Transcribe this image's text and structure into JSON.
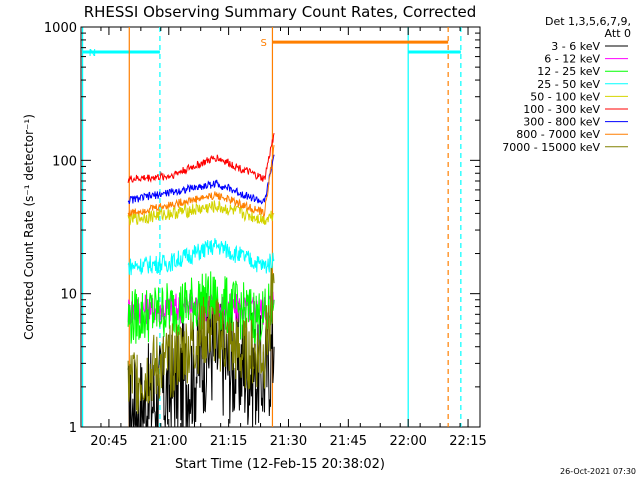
{
  "chart_data": {
    "type": "line",
    "title": "RHESSI Observing Summary Count Rates, Corrected",
    "xlabel": "Start Time (12-Feb-15 20:38:02)",
    "ylabel": "Corrected Count Rate (s⁻¹ detector⁻¹)",
    "yscale": "log",
    "ylim": [
      1,
      1000
    ],
    "xlim": [
      "20:38",
      "22:18"
    ],
    "x_ticks": [
      "20:45",
      "21:00",
      "21:15",
      "21:30",
      "21:45",
      "22:00",
      "22:15"
    ],
    "y_ticks": [
      "1",
      "10",
      "100",
      "1000"
    ],
    "grid": false,
    "legend_position": "right",
    "legend_header": [
      "Det 1,3,5,6,7,9,",
      "Att 0"
    ],
    "timestamp": "26-Oct-2021 07:30",
    "flag_labels": {
      "night": "N",
      "saa": "S"
    },
    "series": [
      {
        "name": "3 - 6 keV",
        "color": "#000000",
        "values": [
          [
            20.83,
            1.2
          ],
          [
            21.1,
            2.5
          ],
          [
            21.17,
            4
          ],
          [
            21.25,
            3
          ],
          [
            21.4,
            2.5
          ],
          [
            21.44,
            4
          ]
        ]
      },
      {
        "name": "6 - 12 keV",
        "color": "#ff00ff",
        "values": [
          [
            20.83,
            7.5
          ],
          [
            21.17,
            8
          ],
          [
            21.4,
            7.5
          ],
          [
            21.44,
            9
          ]
        ]
      },
      {
        "name": "12 - 25 keV",
        "color": "#00ff00",
        "values": [
          [
            20.83,
            6.5
          ],
          [
            21.17,
            9
          ],
          [
            21.4,
            6.5
          ],
          [
            21.44,
            9
          ]
        ]
      },
      {
        "name": "25 - 50 keV",
        "color": "#00ffff",
        "values": [
          [
            20.83,
            16
          ],
          [
            21.0,
            17
          ],
          [
            21.2,
            23
          ],
          [
            21.4,
            16
          ],
          [
            21.44,
            18
          ]
        ]
      },
      {
        "name": "50 - 100 keV",
        "color": "#d4d400",
        "values": [
          [
            20.83,
            36
          ],
          [
            21.2,
            45
          ],
          [
            21.4,
            36
          ],
          [
            21.44,
            40
          ]
        ]
      },
      {
        "name": "100 - 300 keV",
        "color": "#ff0000",
        "values": [
          [
            20.83,
            72
          ],
          [
            21.0,
            76
          ],
          [
            21.2,
            105
          ],
          [
            21.4,
            72
          ],
          [
            21.44,
            160
          ]
        ]
      },
      {
        "name": "300 - 800 keV",
        "color": "#0000ff",
        "values": [
          [
            20.83,
            50
          ],
          [
            21.2,
            67
          ],
          [
            21.4,
            48
          ],
          [
            21.44,
            110
          ]
        ]
      },
      {
        "name": "800 - 7000 keV",
        "color": "#ff7f00",
        "values": [
          [
            20.83,
            40
          ],
          [
            21.2,
            55
          ],
          [
            21.4,
            40
          ],
          [
            21.44,
            130
          ]
        ]
      },
      {
        "name": "7000 - 15000 keV",
        "color": "#808000",
        "values": [
          [
            20.83,
            2.2
          ],
          [
            21.0,
            3
          ],
          [
            21.17,
            5.5
          ],
          [
            21.3,
            3.5
          ],
          [
            21.4,
            3.5
          ],
          [
            21.44,
            12
          ]
        ]
      }
    ],
    "flags": [
      {
        "label": "N",
        "color": "#00ffff",
        "segments": [
          [
            20.64,
            20.963,
            650
          ],
          [
            22.0,
            22.22,
            650
          ]
        ],
        "solid_lines": [
          20.64,
          22.0
        ],
        "dashed_lines": [
          20.963,
          22.22
        ]
      },
      {
        "label": "S",
        "color": "#ff7f00",
        "segments": [
          [
            21.433,
            22.167,
            770
          ]
        ],
        "solid_lines": [
          20.835,
          21.433
        ],
        "dashed_lines": [
          22.167
        ]
      }
    ]
  }
}
